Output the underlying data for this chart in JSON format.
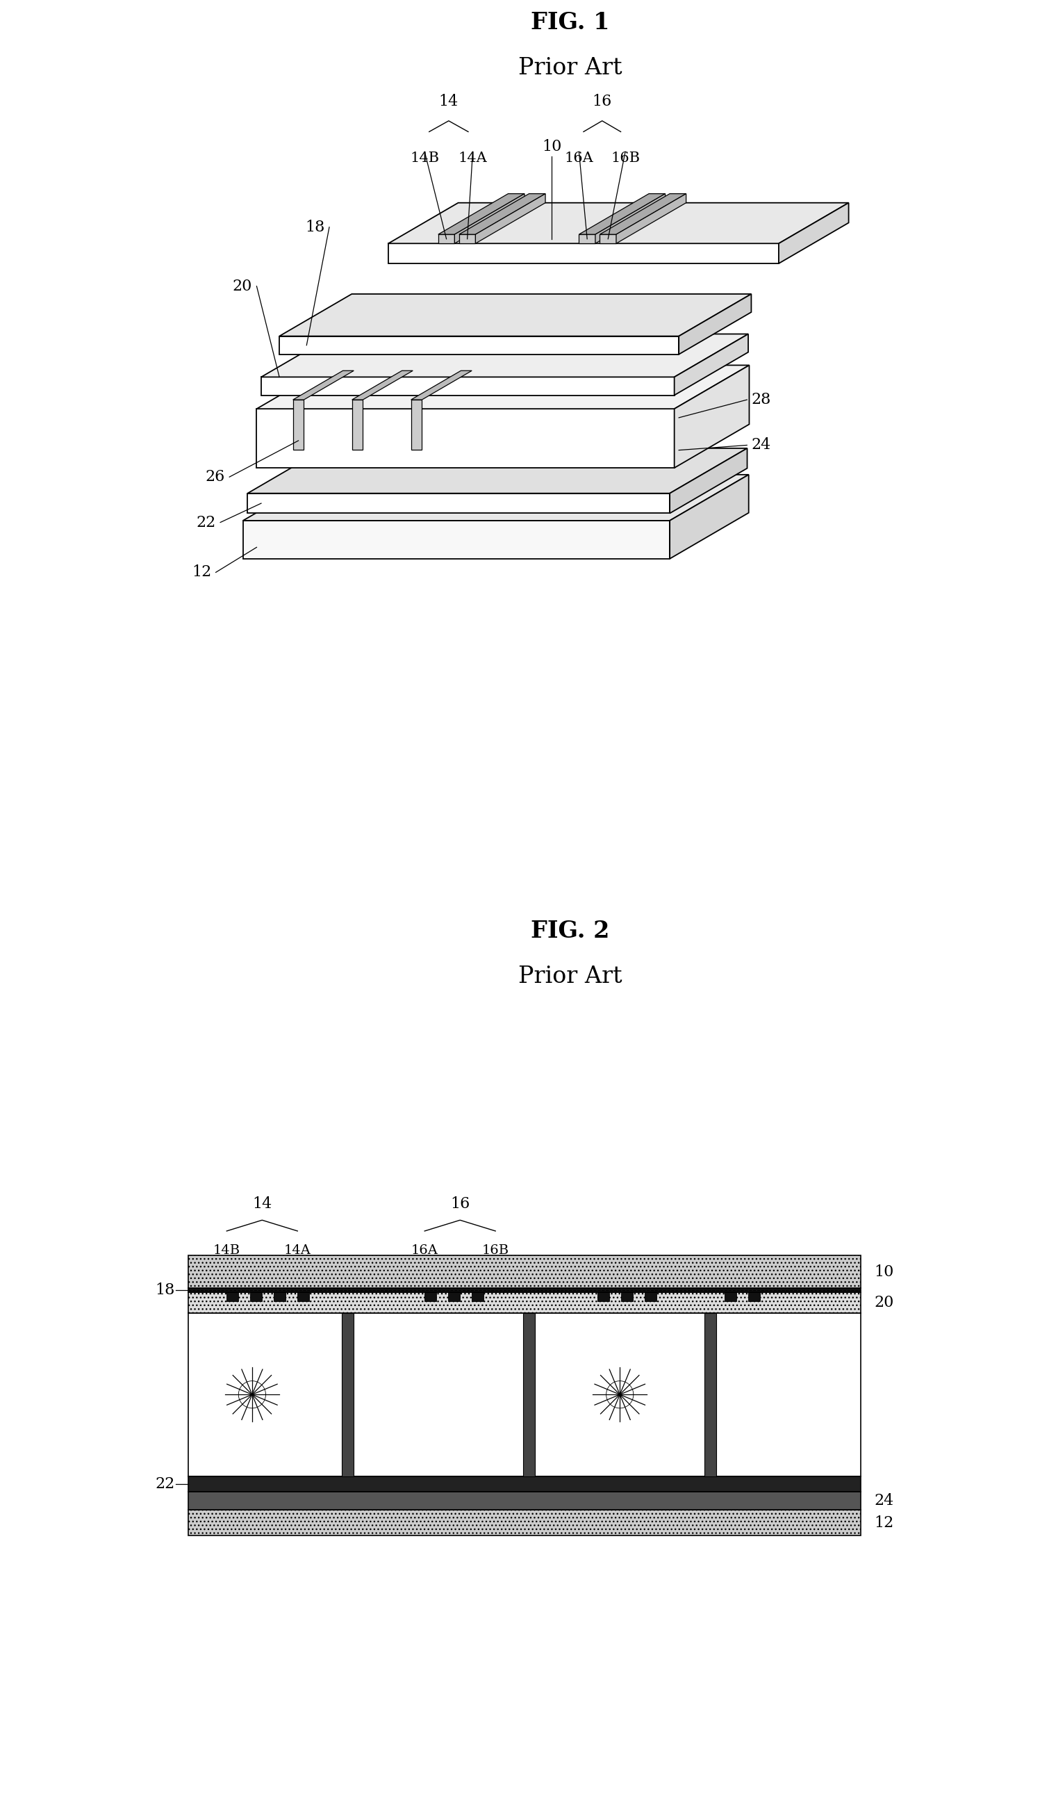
{
  "fig1_title": "FIG. 1",
  "fig1_subtitle": "Prior Art",
  "fig2_title": "FIG. 2",
  "fig2_subtitle": "Prior Art",
  "background_color": "#ffffff",
  "line_color": "#000000",
  "label_fontsize": 16,
  "title_fontsize": 24,
  "subtitle_fontsize": 24
}
